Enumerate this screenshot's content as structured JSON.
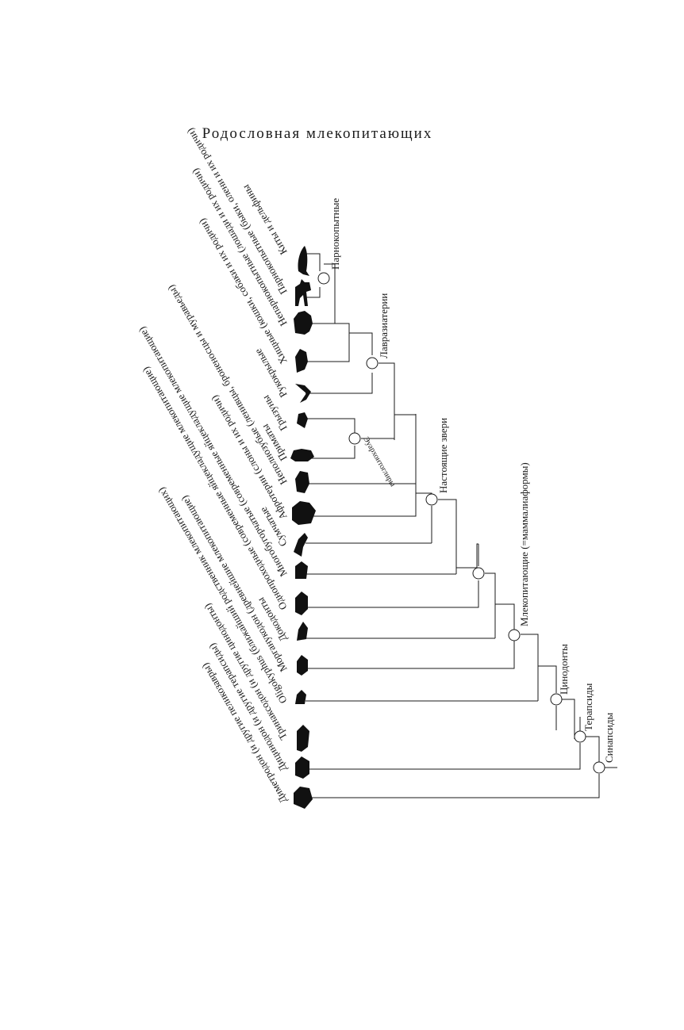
{
  "title": "Родословная млекопитающих",
  "taxa": [
    {
      "id": "whales",
      "label": "Киты и дельфины",
      "icon": "whale-silhouette-icon"
    },
    {
      "id": "artiodactyls",
      "label": "Парнокопытные (быки, олени и их родичи)",
      "icon": "deer-silhouette-icon"
    },
    {
      "id": "perissodactyls",
      "label": "Непарнокопытные (лошади и их родичи)",
      "icon": "rhino-silhouette-icon"
    },
    {
      "id": "carnivores",
      "label": "Хищные (кошки, собаки и их родичи)",
      "icon": "cat-silhouette-icon"
    },
    {
      "id": "bats",
      "label": "Рукокрылые",
      "icon": "bat-silhouette-icon"
    },
    {
      "id": "rodents",
      "label": "Грызуны",
      "icon": "rodent-silhouette-icon"
    },
    {
      "id": "primates",
      "label": "Приматы",
      "icon": "primate-silhouette-icon"
    },
    {
      "id": "xenarthrans",
      "label": "Неполнозубые (ленивцы, броненосцы и муравьеды)",
      "icon": "anteater-silhouette-icon"
    },
    {
      "id": "afrotherians",
      "label": "Афротерии (слоны и их родичи)",
      "icon": "elephant-silhouette-icon"
    },
    {
      "id": "marsupials",
      "label": "Сумчатые",
      "icon": "kangaroo-silhouette-icon"
    },
    {
      "id": "multituberculates",
      "label": "Многобугорчатые (современные яйцекладущие млекопитающие)",
      "icon": "multituberculate-silhouette-icon"
    },
    {
      "id": "monotremes",
      "label": "Однопроходные (современные яйцекладущие млекопитающие)",
      "icon": "platypus-silhouette-icon"
    },
    {
      "id": "docodonts",
      "label": "Докодонты",
      "icon": "docodont-silhouette-icon"
    },
    {
      "id": "morganucodon",
      "label": "Морганукодон (древнейшие млекопитающие)",
      "icon": "morganucodon-silhouette-icon"
    },
    {
      "id": "oligokyphus",
      "label": "Oligokyphus (ближайший родственник млекопитающих)",
      "icon": "oligokyphus-silhouette-icon"
    },
    {
      "id": "thrinaxodon",
      "label": "Тринаксодон (и другие цинодонты)",
      "icon": "thrinaxodon-silhouette-icon"
    },
    {
      "id": "dicynodon",
      "label": "Дицинодон (и другие терапсиды)",
      "icon": "dicynodon-silhouette-icon"
    },
    {
      "id": "dimetrodon",
      "label": "Диметродон (и другие пеликозавры)",
      "icon": "dimetrodon-silhouette-icon"
    }
  ],
  "clades": [
    {
      "id": "artiodactyla",
      "label": "Парнокопытные"
    },
    {
      "id": "laurasiatheria",
      "label": "Лавразиатерии"
    },
    {
      "id": "euarchontoglires",
      "label": "Эуархонтоглиры"
    },
    {
      "id": "placentalia",
      "label": "Настоящие звери"
    },
    {
      "id": "mammalia",
      "label": "Млекопитающие (=маммалиаформы)"
    },
    {
      "id": "cynodontia",
      "label": "Цинодонты"
    },
    {
      "id": "therapsida",
      "label": "Терапсиды"
    },
    {
      "id": "synapsida",
      "label": "Синапсиды"
    }
  ]
}
